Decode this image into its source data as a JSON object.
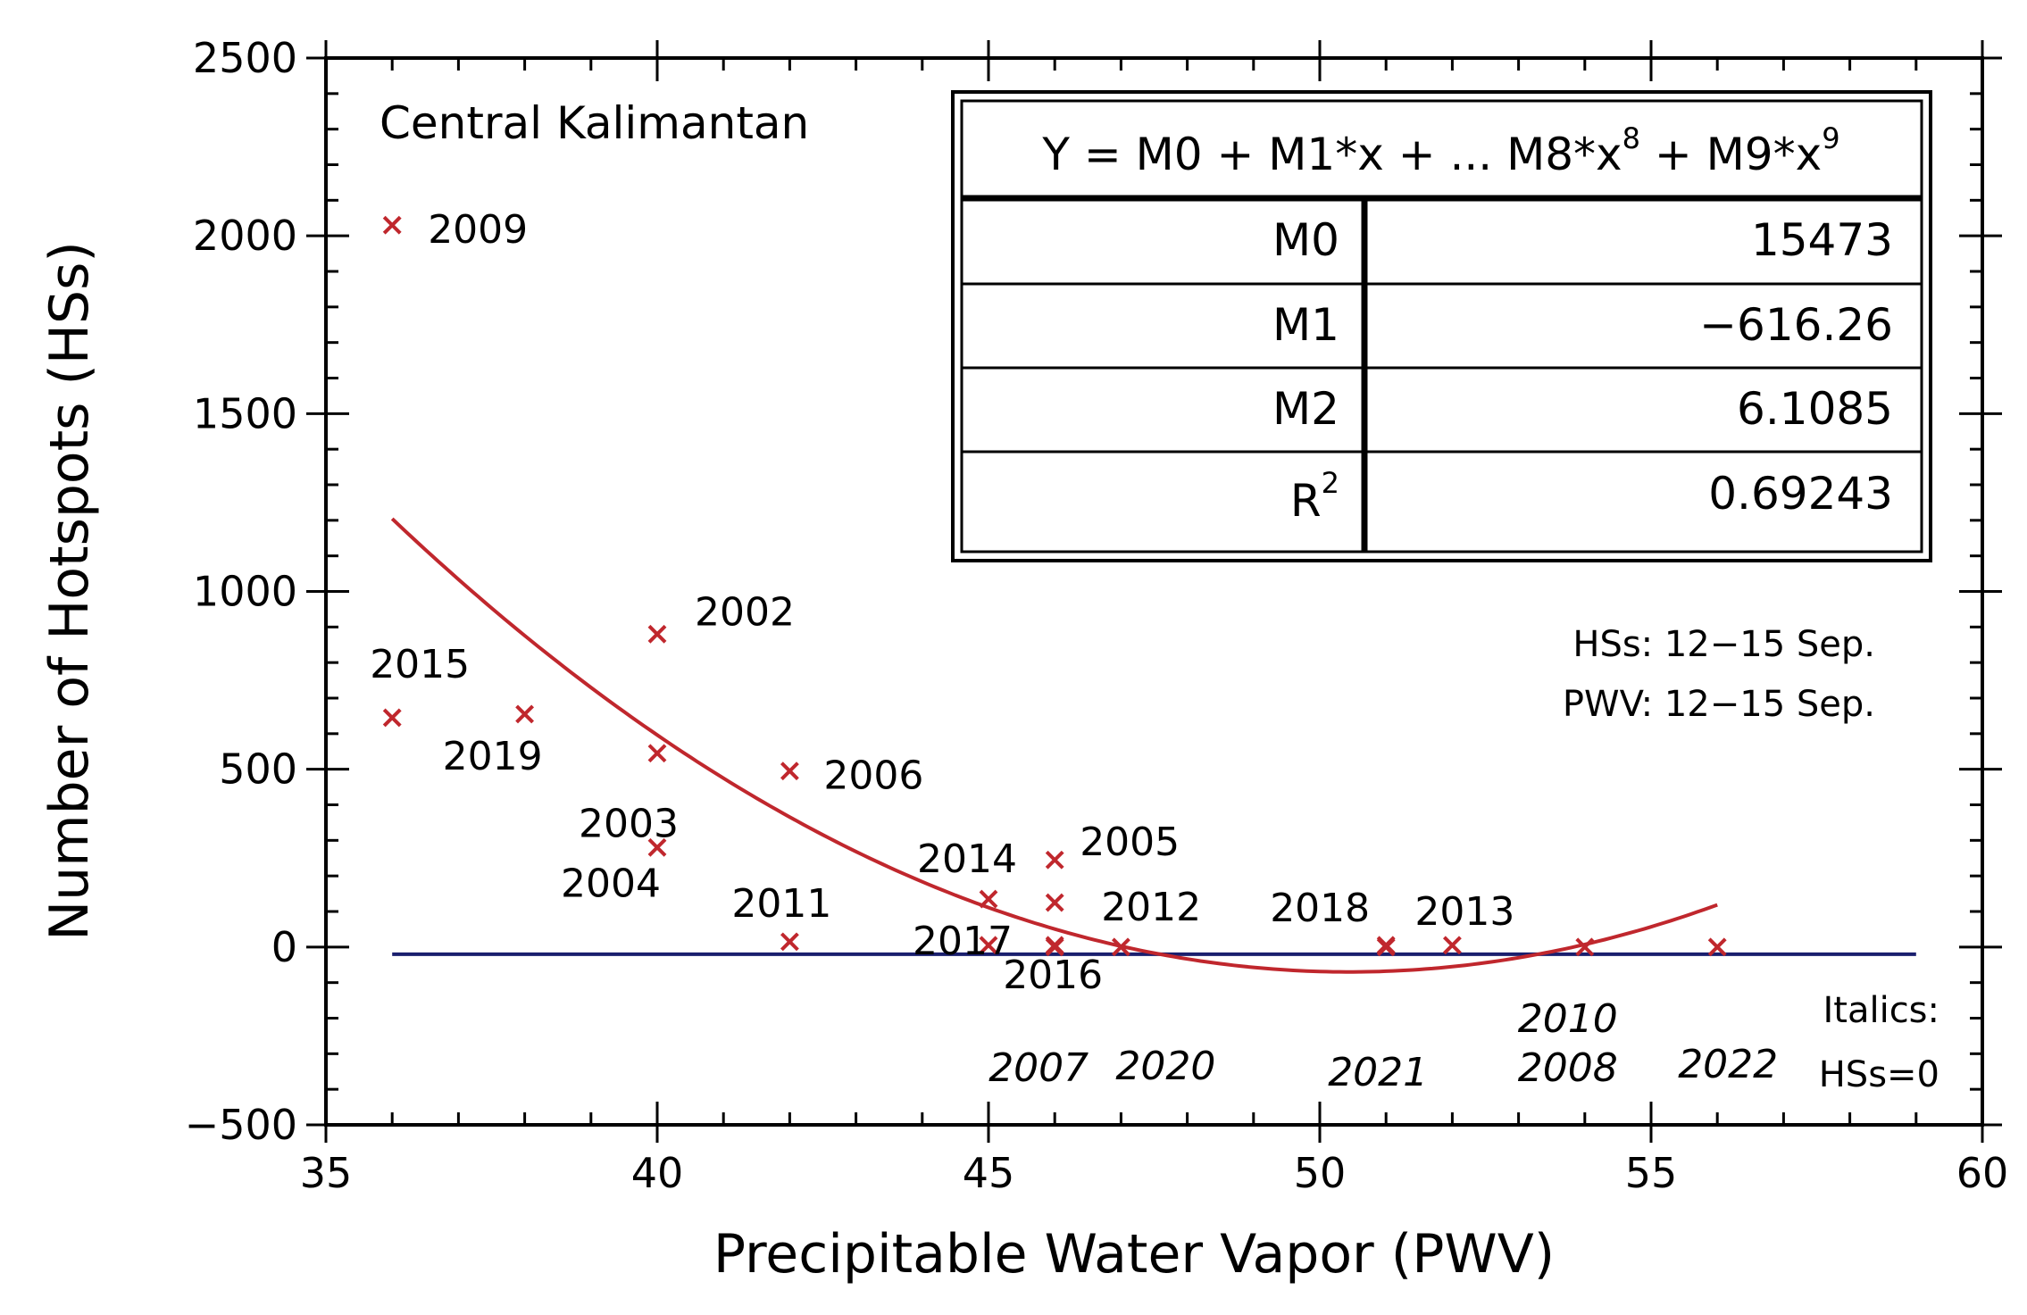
{
  "chart_data": {
    "type": "scatter",
    "title": "",
    "xlabel": "Precipitable Water Vapor (PWV)",
    "ylabel": "Number of Hotspots (HSs)",
    "xlim": [
      35,
      60
    ],
    "ylim": [
      -500,
      2500
    ],
    "xticks": [
      35,
      40,
      45,
      50,
      55,
      60
    ],
    "yticks": [
      -500,
      0,
      500,
      1000,
      1500,
      2000,
      2500
    ],
    "xtick_labels": [
      "35",
      "40",
      "45",
      "50",
      "55",
      "60"
    ],
    "ytick_labels": [
      "−500",
      "0",
      "500",
      "1000",
      "1500",
      "2000",
      "2500"
    ],
    "region_label": "Central Kalimantan",
    "points": [
      {
        "year": "2009",
        "x": 36,
        "y": 2030,
        "italic": false
      },
      {
        "year": "2002",
        "x": 40,
        "y": 880,
        "italic": false
      },
      {
        "year": "2015",
        "x": 36,
        "y": 645,
        "italic": false
      },
      {
        "year": "2019",
        "x": 38,
        "y": 655,
        "italic": false
      },
      {
        "year": "2003",
        "x": 40,
        "y": 545,
        "italic": false
      },
      {
        "year": "2006",
        "x": 42,
        "y": 495,
        "italic": false
      },
      {
        "year": "2004",
        "x": 40,
        "y": 280,
        "italic": false
      },
      {
        "year": "2005",
        "x": 46,
        "y": 245,
        "italic": false
      },
      {
        "year": "2014",
        "x": 45,
        "y": 135,
        "italic": false
      },
      {
        "year": "2012",
        "x": 46,
        "y": 125,
        "italic": false
      },
      {
        "year": "2011",
        "x": 42,
        "y": 15,
        "italic": false
      },
      {
        "year": "2017",
        "x": 45,
        "y": 5,
        "italic": false
      },
      {
        "year": "2016",
        "x": 46,
        "y": 5,
        "italic": false
      },
      {
        "year": "2018",
        "x": 51,
        "y": 5,
        "italic": false
      },
      {
        "year": "2013",
        "x": 52,
        "y": 5,
        "italic": false
      },
      {
        "year": "2007",
        "x": 46,
        "y": 0,
        "italic": true
      },
      {
        "year": "2020",
        "x": 47,
        "y": 0,
        "italic": true
      },
      {
        "year": "2021",
        "x": 51,
        "y": 0,
        "italic": true
      },
      {
        "year": "2010",
        "x": 54,
        "y": 0,
        "italic": true
      },
      {
        "year": "2008",
        "x": 54,
        "y": 0,
        "italic": true
      },
      {
        "year": "2022",
        "x": 56,
        "y": 0,
        "italic": true
      }
    ],
    "fit_curve": {
      "type": "polynomial",
      "equation": "Y = M0 + M1*x + ... M8*x^8 + M9*x^9",
      "coefficients": {
        "M0": 15473,
        "M1": -616.26,
        "M2": 6.1085
      },
      "coefficient_labels": {
        "M0": "15473",
        "M1": "−616.26",
        "M2": "6.1085"
      },
      "r2": "0.69243",
      "x_range": [
        36,
        56
      ],
      "color": "#c0272d"
    },
    "zero_line": {
      "x_range": [
        36,
        59
      ],
      "y": 0,
      "color": "#1a1f6e"
    },
    "marker_color": "#c0272d"
  },
  "table": {
    "equation": {
      "prefix": "Y = M0 + M1*x + ... M8*x",
      "exp1": "8",
      "mid": " + M9*x",
      "exp2": "9"
    },
    "rows": [
      {
        "label": "M0",
        "value": "15473"
      },
      {
        "label": "M1",
        "value": "−616.26"
      },
      {
        "label": "M2",
        "value": "6.1085"
      },
      {
        "label": "R",
        "label_sup": "2",
        "value": "0.69243"
      }
    ]
  },
  "notes": {
    "period_hss": "HSs: 12−15 Sep.",
    "period_pwv": "PWV: 12−15 Sep.",
    "italics_title": "Italics:",
    "italics_desc": "HSs=0"
  }
}
